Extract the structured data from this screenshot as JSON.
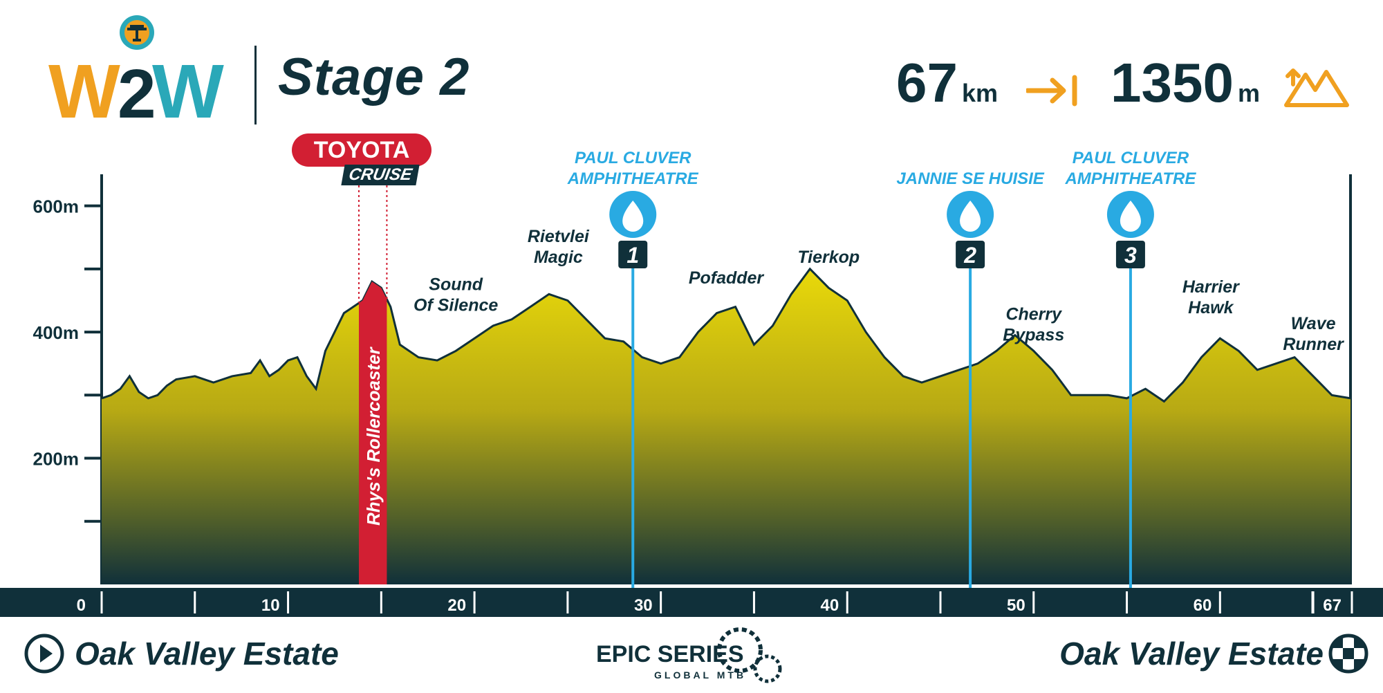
{
  "header": {
    "stage_title": "Stage 2",
    "distance_value": "67",
    "distance_unit": "km",
    "climb_value": "1350",
    "climb_unit": "m"
  },
  "brand": {
    "event_logo_text": "W2W",
    "series_logo_text": "EPIC SERIES",
    "series_sub_text": "GLOBAL MTB",
    "colors": {
      "navy": "#10303a",
      "orange": "#f0a020",
      "teal": "#2aa8b8",
      "blue": "#29aae2",
      "red": "#d21f33",
      "yellow": "#e8d800"
    }
  },
  "sponsor_segment": {
    "brand_label": "TOYOTA",
    "sub_label": "CRUISE",
    "segment_name": "Rhys's Rollercoaster"
  },
  "route": {
    "start_label": "Oak Valley Estate",
    "finish_label": "Oak Valley Estate"
  },
  "chart_data": {
    "type": "area",
    "title": "",
    "xlabel": "",
    "ylabel": "",
    "xlim": [
      0,
      67
    ],
    "ylim": [
      0,
      650
    ],
    "x_ticks": [
      0,
      10,
      20,
      30,
      40,
      50,
      60,
      67
    ],
    "x_tick_labels": [
      "0",
      "10",
      "20",
      "30",
      "40",
      "50",
      "60",
      "67"
    ],
    "y_ticks": [
      200,
      400,
      600
    ],
    "y_tick_labels": [
      "200m",
      "400m",
      "600m"
    ],
    "y_minor_ticks": [
      100,
      300,
      500
    ],
    "grid": false,
    "x": [
      0,
      0.5,
      1,
      1.5,
      2,
      2.5,
      3,
      3.5,
      4,
      5,
      6,
      7,
      8,
      8.5,
      9,
      9.5,
      10,
      10.5,
      11,
      11.5,
      12,
      13,
      14,
      14.5,
      15,
      15.5,
      16,
      17,
      18,
      19,
      20,
      21,
      22,
      23,
      24,
      25,
      26,
      27,
      28,
      29,
      30,
      31,
      32,
      33,
      34,
      35,
      36,
      37,
      38,
      39,
      40,
      41,
      42,
      43,
      44,
      45,
      46,
      47,
      48,
      49,
      50,
      51,
      52,
      53,
      54,
      55,
      56,
      57,
      58,
      59,
      60,
      61,
      62,
      63,
      64,
      65,
      66,
      67
    ],
    "elevation": [
      295,
      300,
      310,
      330,
      305,
      295,
      300,
      315,
      325,
      330,
      320,
      330,
      335,
      355,
      330,
      340,
      355,
      360,
      330,
      310,
      370,
      430,
      450,
      480,
      470,
      440,
      380,
      360,
      355,
      370,
      390,
      410,
      420,
      440,
      460,
      450,
      420,
      390,
      385,
      360,
      350,
      360,
      400,
      430,
      440,
      380,
      410,
      460,
      500,
      470,
      450,
      400,
      360,
      330,
      320,
      330,
      340,
      350,
      370,
      395,
      370,
      340,
      300,
      300,
      300,
      295,
      310,
      290,
      320,
      360,
      390,
      370,
      340,
      350,
      360,
      330,
      300,
      295
    ],
    "climbs": [
      {
        "name": "Sound Of Silence",
        "km": 19.0
      },
      {
        "name": "Rietvlei Magic",
        "km": 24.5
      },
      {
        "name": "Pofadder",
        "km": 33.5
      },
      {
        "name": "Tierkop",
        "km": 39.0
      },
      {
        "name": "Cherry Bypass",
        "km": 50.0
      },
      {
        "name": "Harrier Hawk",
        "km": 59.5
      },
      {
        "name": "Wave Runner",
        "km": 65.0
      }
    ],
    "water_points": [
      {
        "number": "1",
        "name": "PAUL CLUVER AMPHITHEATRE",
        "km": 28.5
      },
      {
        "number": "2",
        "name": "JANNIE SE HUISIE",
        "km": 46.6
      },
      {
        "number": "3",
        "name": "PAUL CLUVER AMPHITHEATRE",
        "km": 55.2
      }
    ],
    "segment": {
      "name": "Rhys's Rollercoaster",
      "km_start": 13.8,
      "km_end": 15.3
    }
  }
}
